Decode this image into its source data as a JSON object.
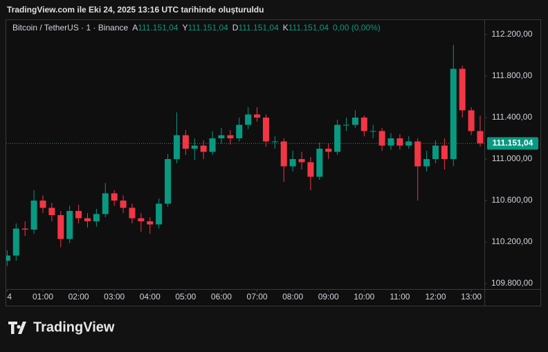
{
  "header": {
    "title": "TradingView.com ile Eki 24, 2025 13:16 UTC tarihinde oluşturuldu"
  },
  "brand": "TradingView",
  "chart_data": {
    "type": "candlestick",
    "legend": {
      "symbol": "Bitcoin / TetherUS · 1 · Binance",
      "fields": [
        {
          "key": "A",
          "value": "111.151,04"
        },
        {
          "key": "Y",
          "value": "111.151,04"
        },
        {
          "key": "D",
          "value": "111.151,04"
        },
        {
          "key": "K",
          "value": "111.151,04"
        }
      ],
      "change": "0,00 (0,00%)"
    },
    "x": [
      0,
      15,
      30,
      45,
      60,
      75,
      90,
      105,
      120,
      135,
      150,
      165,
      180,
      195,
      210,
      225,
      240,
      255,
      270,
      285,
      300,
      315,
      330,
      345,
      360,
      375,
      390,
      405,
      420,
      435,
      450,
      465,
      480,
      495,
      510,
      525,
      540,
      555,
      570,
      585,
      600,
      615,
      630,
      645,
      660,
      675,
      690,
      705,
      720,
      735,
      750,
      765,
      780,
      795
    ],
    "open": [
      110020,
      110070,
      110330,
      110320,
      110600,
      110530,
      110460,
      110230,
      110500,
      110430,
      110400,
      110470,
      110670,
      110600,
      110530,
      110430,
      110400,
      110370,
      110570,
      111000,
      111230,
      111100,
      111130,
      111070,
      111200,
      111230,
      111200,
      111330,
      111430,
      111400,
      111170,
      111170,
      110930,
      111000,
      110970,
      110830,
      111100,
      111070,
      111330,
      111330,
      111400,
      111270,
      111270,
      111130,
      111200,
      111130,
      111170,
      110930,
      111000,
      111130,
      111000,
      111870,
      111470,
      111270
    ],
    "high": [
      110120,
      110380,
      110400,
      110700,
      110650,
      110580,
      110500,
      110550,
      110560,
      110480,
      110520,
      110770,
      110700,
      110650,
      110570,
      110480,
      110440,
      110620,
      111050,
      111450,
      111280,
      111200,
      111180,
      111270,
      111300,
      111280,
      111400,
      111500,
      111500,
      111430,
      111220,
      111200,
      111080,
      111070,
      111020,
      111160,
      111150,
      111380,
      111400,
      111470,
      111420,
      111330,
      111300,
      111250,
      111240,
      111220,
      111200,
      111080,
      111180,
      111200,
      112100,
      111900,
      111500,
      111420
    ],
    "low": [
      109970,
      110020,
      110260,
      110280,
      110480,
      110400,
      110150,
      110190,
      110380,
      110340,
      110350,
      110440,
      110550,
      110480,
      110380,
      110300,
      110280,
      110330,
      110540,
      110960,
      111040,
      110990,
      111000,
      111040,
      111150,
      111140,
      111170,
      111290,
      111360,
      111120,
      111100,
      110780,
      110880,
      110900,
      110700,
      110800,
      111000,
      111040,
      111270,
      111300,
      111220,
      111200,
      111080,
      111090,
      111090,
      111100,
      110600,
      110880,
      110960,
      110900,
      110930,
      111400,
      111230,
      111120
    ],
    "close": [
      110070,
      110330,
      110320,
      110600,
      110530,
      110460,
      110230,
      110500,
      110430,
      110400,
      110470,
      110670,
      110600,
      110530,
      110430,
      110400,
      110370,
      110570,
      111000,
      111230,
      111100,
      111130,
      111070,
      111200,
      111230,
      111200,
      111330,
      111430,
      111400,
      111170,
      111170,
      110930,
      111000,
      110970,
      110830,
      111100,
      111070,
      111330,
      111330,
      111400,
      111270,
      111270,
      111130,
      111200,
      111130,
      111170,
      110930,
      111000,
      111130,
      111000,
      111870,
      111470,
      111270,
      111151
    ],
    "up_color": "#089981",
    "down_color": "#f23645",
    "xlim": [
      0,
      802
    ],
    "xticks": [
      {
        "value": 0,
        "label": "4"
      },
      {
        "value": 60,
        "label": "01:00"
      },
      {
        "value": 120,
        "label": "02:00"
      },
      {
        "value": 180,
        "label": "03:00"
      },
      {
        "value": 240,
        "label": "04:00"
      },
      {
        "value": 300,
        "label": "05:00"
      },
      {
        "value": 360,
        "label": "06:00"
      },
      {
        "value": 420,
        "label": "07:00"
      },
      {
        "value": 480,
        "label": "08:00"
      },
      {
        "value": 540,
        "label": "09:00"
      },
      {
        "value": 600,
        "label": "10:00"
      },
      {
        "value": 660,
        "label": "11:00"
      },
      {
        "value": 720,
        "label": "12:00"
      },
      {
        "value": 780,
        "label": "13:00"
      }
    ],
    "ylim": [
      109747,
      112280
    ],
    "yticks": [
      {
        "value": 109800,
        "label": "109.800,00"
      },
      {
        "value": 110200,
        "label": "110.200,00"
      },
      {
        "value": 110600,
        "label": "110.600,00"
      },
      {
        "value": 111000,
        "label": "111.000,00"
      },
      {
        "value": 111400,
        "label": "111.400,00"
      },
      {
        "value": 111800,
        "label": "111.800,00"
      },
      {
        "value": 112200,
        "label": "112.200,00"
      }
    ],
    "last_price": {
      "value": 111151.04,
      "label": "111.151,04"
    }
  }
}
